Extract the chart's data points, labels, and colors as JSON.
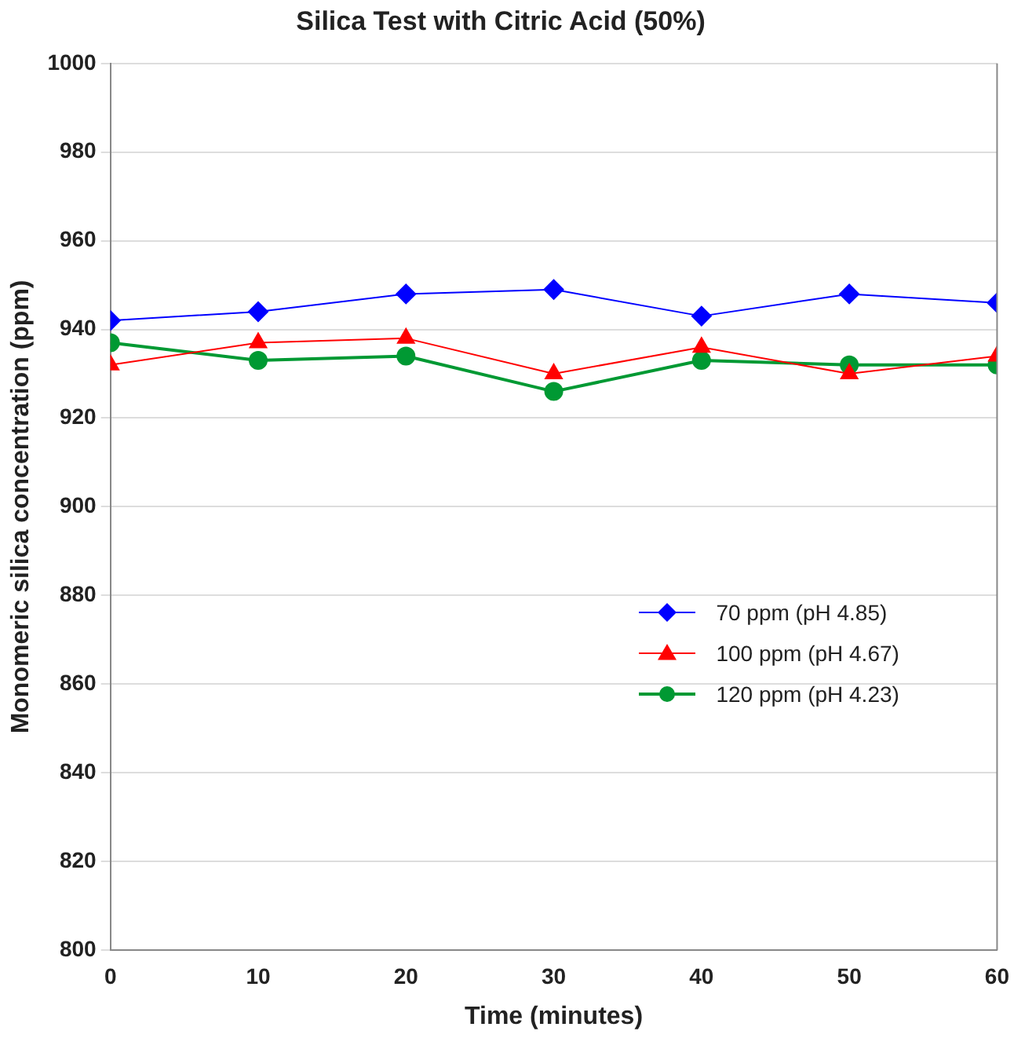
{
  "chart_data": {
    "type": "line",
    "title": "Silica Test with Citric Acid (50%)",
    "xlabel": "Time (minutes)",
    "ylabel": "Monomeric silica concentration (ppm)",
    "x": [
      0,
      10,
      20,
      30,
      40,
      50,
      60
    ],
    "series": [
      {
        "name": "70 ppm (pH 4.85)",
        "color": "#0000ff",
        "marker": "diamond",
        "values": [
          942,
          944,
          948,
          949,
          943,
          948,
          946
        ]
      },
      {
        "name": "100 ppm (pH 4.67)",
        "color": "#ff0000",
        "marker": "triangle",
        "values": [
          932,
          937,
          938,
          930,
          936,
          930,
          934
        ]
      },
      {
        "name": "120 ppm (pH 4.23)",
        "color": "#009933",
        "marker": "circle",
        "values": [
          937,
          933,
          934,
          926,
          933,
          932,
          932
        ]
      }
    ],
    "xlim": [
      0,
      60
    ],
    "xticks": [
      0,
      10,
      20,
      30,
      40,
      50,
      60
    ],
    "ylim": [
      800,
      1000
    ],
    "yticks": [
      800,
      820,
      840,
      860,
      880,
      900,
      920,
      940,
      960,
      980,
      1000
    ],
    "grid": "y",
    "legend": "right",
    "line_style": "solid"
  }
}
